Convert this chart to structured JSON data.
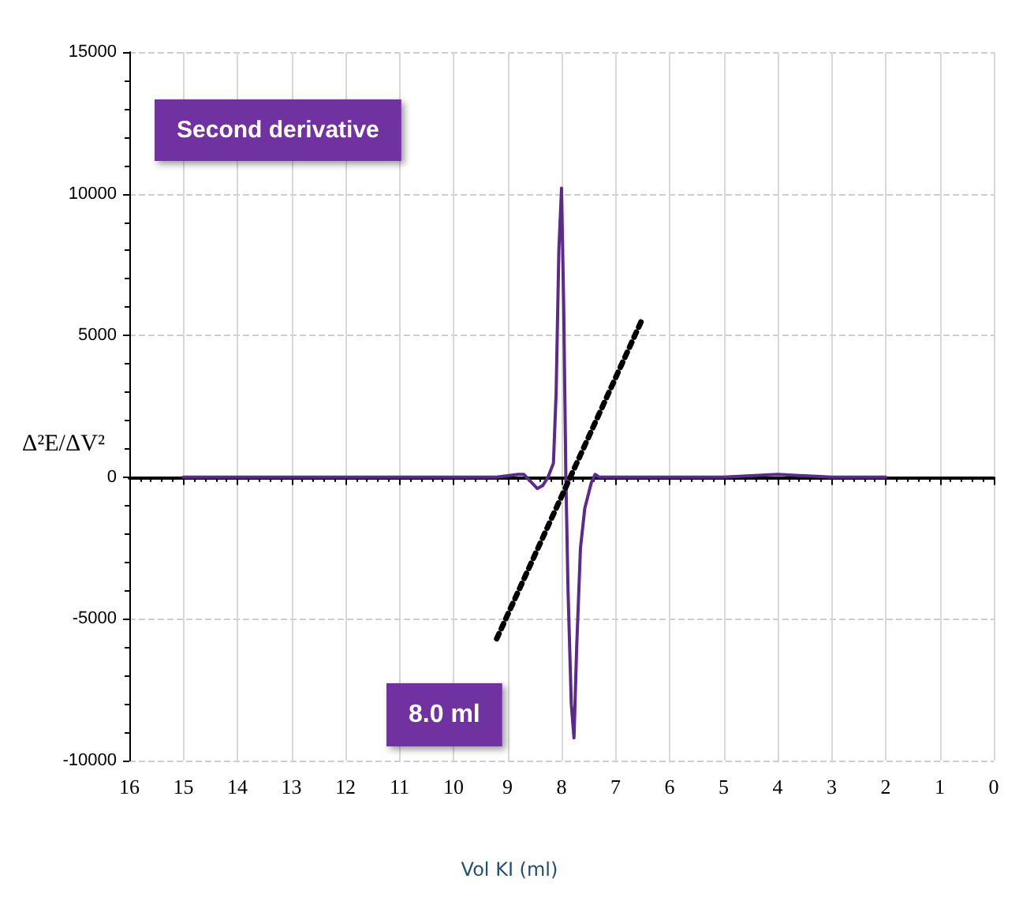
{
  "chart_data": {
    "type": "line",
    "ylabel": "Δ²E/ΔV²",
    "annotations": [
      "Second derivative",
      "8.0 ml",
      "Vol KI (ml)"
    ],
    "xlim": [
      16,
      0
    ],
    "ylim": [
      -10000,
      15000
    ],
    "xticks": [
      16,
      15,
      14,
      13,
      12,
      11,
      10,
      9,
      8,
      7,
      6,
      5,
      4,
      3,
      2,
      1,
      0
    ],
    "yticks": [
      -10000,
      -5000,
      0,
      5000,
      10000,
      15000
    ],
    "grid": true,
    "marker": "none",
    "series": [
      {
        "color": "#5b2a8c",
        "line_style": "solid",
        "x": [
          15,
          13,
          11,
          10,
          9.2,
          8.8,
          8.7,
          8.55,
          8.45,
          8.35,
          8.25,
          8.15,
          8.1,
          8.05,
          8.0,
          7.96,
          7.92,
          7.88,
          7.82,
          7.77,
          7.72,
          7.65,
          7.57,
          7.45,
          7.38,
          7.3,
          6,
          5,
          4,
          3,
          2
        ],
        "values": [
          0,
          0,
          0,
          0,
          0,
          100,
          100,
          -200,
          -400,
          -300,
          0,
          500,
          3000,
          8000,
          10200,
          6000,
          0,
          -4000,
          -8000,
          -9200,
          -6000,
          -2500,
          -1100,
          -200,
          100,
          0,
          0,
          0,
          100,
          0,
          0
        ]
      },
      {
        "color": "#000000",
        "line_style": "dotted",
        "x": [
          9.2,
          6.5
        ],
        "values": [
          -5700,
          5600
        ]
      }
    ]
  }
}
